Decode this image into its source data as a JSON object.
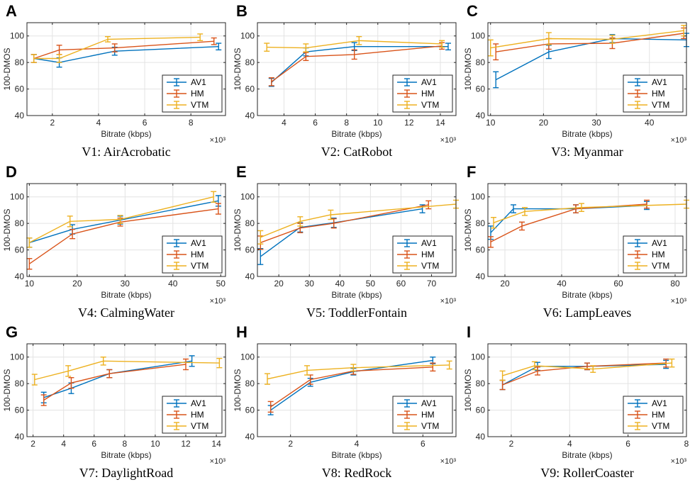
{
  "colors": {
    "AV1": "#0072BD",
    "HM": "#D95319",
    "VTM": "#EDB120"
  },
  "legend_placement": "bottom-right",
  "grid": true,
  "chart_data": [
    {
      "type": "line",
      "letter": "A",
      "title": "V1: AirAcrobatic",
      "xlabel": "Bitrate (kbps)",
      "ylabel": "100-DMOS",
      "x_multiplier": "×10³",
      "xlim": [
        0.9,
        9.5
      ],
      "ylim": [
        40,
        110
      ],
      "xticks": [
        2,
        4,
        6,
        8
      ],
      "yticks": [
        40,
        60,
        80,
        100
      ],
      "series": [
        {
          "name": "AV1",
          "x": [
            1.2,
            2.3,
            4.7,
            9.2
          ],
          "y": [
            83,
            80,
            88.5,
            92
          ],
          "err": [
            3,
            3.5,
            3,
            2.5
          ]
        },
        {
          "name": "HM",
          "x": [
            1.2,
            2.3,
            4.7,
            9.0
          ],
          "y": [
            83,
            89.5,
            91,
            96
          ],
          "err": [
            3,
            3.5,
            3,
            2.5
          ]
        },
        {
          "name": "VTM",
          "x": [
            1.2,
            2.3,
            4.4,
            8.4
          ],
          "y": [
            83,
            83,
            97.5,
            99
          ],
          "err": [
            3,
            3,
            2,
            2.5
          ]
        }
      ]
    },
    {
      "type": "line",
      "letter": "B",
      "title": "V2: CatRobot",
      "xlabel": "Bitrate (kbps)",
      "ylabel": "100-DMOS",
      "x_multiplier": "×10³",
      "xlim": [
        2.3,
        15
      ],
      "ylim": [
        40,
        110
      ],
      "xticks": [
        4,
        6,
        8,
        10,
        12,
        14
      ],
      "yticks": [
        40,
        60,
        80,
        100
      ],
      "series": [
        {
          "name": "AV1",
          "x": [
            3.2,
            5.4,
            8.5,
            14.5
          ],
          "y": [
            65,
            88,
            92,
            92
          ],
          "err": [
            3,
            3,
            3,
            2.5
          ]
        },
        {
          "name": "HM",
          "x": [
            3.2,
            5.4,
            8.5,
            14.1
          ],
          "y": [
            65.5,
            84.5,
            86,
            92.5
          ],
          "err": [
            3,
            3,
            3.5,
            2.5
          ]
        },
        {
          "name": "VTM",
          "x": [
            2.9,
            5.4,
            8.8,
            14.1
          ],
          "y": [
            91.5,
            91,
            96.5,
            94
          ],
          "err": [
            3,
            3,
            3,
            2.5
          ]
        }
      ]
    },
    {
      "type": "line",
      "letter": "C",
      "title": "V3: Myanmar",
      "xlabel": "Bitrate (kbps)",
      "ylabel": "100-DMOS",
      "x_multiplier": "×10³",
      "xlim": [
        9.5,
        47
      ],
      "ylim": [
        40,
        110
      ],
      "xticks": [
        10,
        20,
        30,
        40
      ],
      "yticks": [
        40,
        60,
        80,
        100
      ],
      "series": [
        {
          "name": "AV1",
          "x": [
            11,
            21,
            33,
            47
          ],
          "y": [
            67,
            88,
            98,
            97
          ],
          "err": [
            6,
            5,
            3,
            5
          ]
        },
        {
          "name": "HM",
          "x": [
            11,
            21,
            33,
            46.5
          ],
          "y": [
            88,
            94,
            94.5,
            102
          ],
          "err": [
            6,
            4,
            4,
            4
          ]
        },
        {
          "name": "VTM",
          "x": [
            10,
            21,
            33,
            46.5
          ],
          "y": [
            91,
            98,
            97.5,
            104
          ],
          "err": [
            6,
            4.5,
            3,
            4
          ]
        }
      ]
    },
    {
      "type": "line",
      "letter": "D",
      "title": "V4: CalmingWater",
      "xlabel": "Bitrate (kbps)",
      "ylabel": "100-DMOS",
      "x_multiplier": "×10³",
      "xlim": [
        9.5,
        51
      ],
      "ylim": [
        40,
        110
      ],
      "xticks": [
        10,
        20,
        30,
        40,
        50
      ],
      "yticks": [
        40,
        60,
        80,
        100
      ],
      "series": [
        {
          "name": "AV1",
          "x": [
            10,
            19,
            29,
            49.5
          ],
          "y": [
            65.5,
            75.5,
            82.5,
            97
          ],
          "err": [
            3.5,
            3.5,
            3,
            4
          ]
        },
        {
          "name": "HM",
          "x": [
            10,
            19,
            29,
            49.5
          ],
          "y": [
            49.5,
            72,
            81,
            91
          ],
          "err": [
            4,
            3.5,
            3,
            4
          ]
        },
        {
          "name": "VTM",
          "x": [
            10,
            18.5,
            29,
            48.5
          ],
          "y": [
            65.5,
            81.5,
            83,
            100
          ],
          "err": [
            3.5,
            4,
            3,
            4
          ]
        }
      ]
    },
    {
      "type": "line",
      "letter": "E",
      "title": "V5: ToddlerFontain",
      "xlabel": "Bitrate (kbps)",
      "ylabel": "100-DMOS",
      "x_multiplier": "×10³",
      "xlim": [
        13,
        78
      ],
      "ylim": [
        40,
        110
      ],
      "xticks": [
        20,
        30,
        40,
        50,
        60,
        70
      ],
      "yticks": [
        40,
        60,
        80,
        100
      ],
      "series": [
        {
          "name": "AV1",
          "x": [
            14,
            27,
            38,
            67
          ],
          "y": [
            55,
            77,
            80.5,
            91
          ],
          "err": [
            6,
            3.5,
            3.5,
            3
          ]
        },
        {
          "name": "HM",
          "x": [
            14,
            27,
            38,
            69
          ],
          "y": [
            65.5,
            76.5,
            80,
            94
          ],
          "err": [
            5,
            3.5,
            3.5,
            3
          ]
        },
        {
          "name": "VTM",
          "x": [
            14,
            27,
            37,
            78
          ],
          "y": [
            69.5,
            81.5,
            86.5,
            94.5
          ],
          "err": [
            5,
            3.5,
            3.5,
            3
          ]
        }
      ]
    },
    {
      "type": "line",
      "letter": "F",
      "title": "V6: LampLeaves",
      "xlabel": "Bitrate (kbps)",
      "ylabel": "100-DMOS",
      "x_multiplier": "×10³",
      "xlim": [
        14,
        84
      ],
      "ylim": [
        40,
        110
      ],
      "xticks": [
        20,
        40,
        60,
        80
      ],
      "yticks": [
        40,
        60,
        80,
        100
      ],
      "series": [
        {
          "name": "AV1",
          "x": [
            15,
            23,
            45,
            70
          ],
          "y": [
            73,
            91,
            91,
            93.5
          ],
          "err": [
            5,
            3,
            3,
            3
          ]
        },
        {
          "name": "HM",
          "x": [
            15,
            26,
            45,
            70
          ],
          "y": [
            66,
            78,
            91,
            94.5
          ],
          "err": [
            4,
            3,
            3,
            3
          ]
        },
        {
          "name": "VTM",
          "x": [
            16,
            27,
            47,
            84
          ],
          "y": [
            80.5,
            89,
            92,
            94.5
          ],
          "err": [
            4,
            3,
            3,
            3
          ]
        }
      ]
    },
    {
      "type": "line",
      "letter": "G",
      "title": "V7: DaylightRoad",
      "xlabel": "Bitrate (kbps)",
      "ylabel": "100-DMOS",
      "x_multiplier": "×10³",
      "xlim": [
        1.6,
        14.6
      ],
      "ylim": [
        40,
        110
      ],
      "xticks": [
        2,
        4,
        6,
        8,
        10,
        12,
        14
      ],
      "yticks": [
        40,
        60,
        80,
        100
      ],
      "series": [
        {
          "name": "AV1",
          "x": [
            2.7,
            4.5,
            7.0,
            12.4
          ],
          "y": [
            69.5,
            76.5,
            87.5,
            97
          ],
          "err": [
            4,
            4,
            3,
            4
          ]
        },
        {
          "name": "HM",
          "x": [
            2.7,
            4.5,
            7.0,
            12.0
          ],
          "y": [
            67.5,
            80.5,
            87.5,
            94.5
          ],
          "err": [
            4,
            4,
            3,
            4
          ]
        },
        {
          "name": "VTM",
          "x": [
            2.1,
            4.3,
            6.6,
            14.2
          ],
          "y": [
            83,
            89.5,
            97,
            95.5
          ],
          "err": [
            4,
            4,
            3,
            3.5
          ]
        }
      ]
    },
    {
      "type": "line",
      "letter": "H",
      "title": "V8: RedRock",
      "xlabel": "Bitrate (kbps)",
      "ylabel": "100-DMOS",
      "x_multiplier": "×10³",
      "xlim": [
        1.0,
        7.0
      ],
      "ylim": [
        40,
        110
      ],
      "xticks": [
        2,
        4,
        6
      ],
      "yticks": [
        40,
        60,
        80,
        100
      ],
      "series": [
        {
          "name": "AV1",
          "x": [
            1.4,
            2.6,
            3.9,
            6.3
          ],
          "y": [
            60,
            81,
            89,
            97.5
          ],
          "err": [
            3.5,
            3,
            2.5,
            2.5
          ]
        },
        {
          "name": "HM",
          "x": [
            1.4,
            2.6,
            3.9,
            6.3
          ],
          "y": [
            62.5,
            83,
            89.5,
            92.5
          ],
          "err": [
            4,
            3.5,
            2.5,
            3
          ]
        },
        {
          "name": "VTM",
          "x": [
            1.3,
            2.5,
            3.9,
            6.8
          ],
          "y": [
            83.5,
            90,
            92,
            94
          ],
          "err": [
            4,
            3.5,
            2.5,
            3
          ]
        }
      ]
    },
    {
      "type": "line",
      "letter": "I",
      "title": "V9: RollerCoaster",
      "xlabel": "Bitrate (kbps)",
      "ylabel": "100-DMOS",
      "x_multiplier": "×10³",
      "xlim": [
        1.2,
        8.0
      ],
      "ylim": [
        40,
        110
      ],
      "xticks": [
        2,
        4,
        6,
        8
      ],
      "yticks": [
        40,
        60,
        80,
        100
      ],
      "series": [
        {
          "name": "AV1",
          "x": [
            1.7,
            2.9,
            4.6,
            7.3
          ],
          "y": [
            79,
            93,
            93,
            94.5
          ],
          "err": [
            3.5,
            3,
            2.5,
            3
          ]
        },
        {
          "name": "HM",
          "x": [
            1.7,
            2.9,
            4.6,
            7.3
          ],
          "y": [
            79,
            89.5,
            93,
            95.5
          ],
          "err": [
            3.5,
            3,
            2.5,
            3
          ]
        },
        {
          "name": "VTM",
          "x": [
            1.7,
            2.8,
            4.8,
            7.5
          ],
          "y": [
            86,
            93.5,
            91,
            95.5
          ],
          "err": [
            3.5,
            3,
            2.5,
            3
          ]
        }
      ]
    }
  ]
}
